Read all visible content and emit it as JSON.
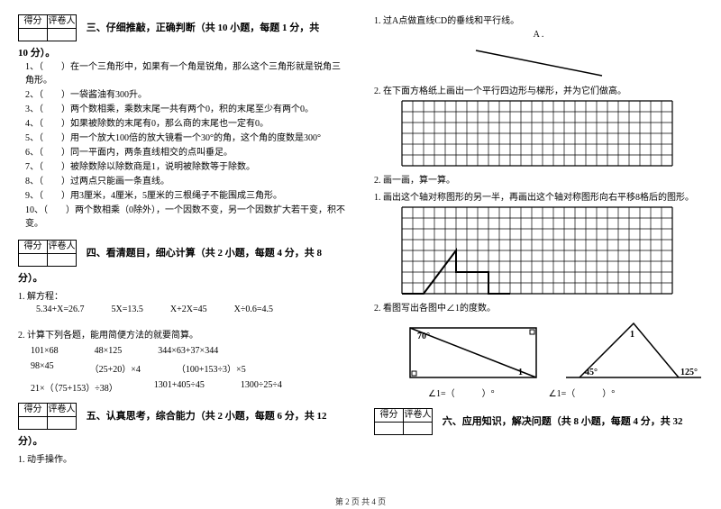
{
  "scorebox": {
    "c1": "得分",
    "c2": "评卷人"
  },
  "s3": {
    "title": "三、仔细推敲，正确判断（共 10 小题，每题 1 分，共",
    "title2": "10 分）。",
    "items": [
      "1、（　　）在一个三角形中，如果有一个角是锐角，那么这个三角形就是锐角三角形。",
      "2、（　　）一袋酱油有300升。",
      "3、（　　）两个数相乘，乘数末尾一共有两个0，积的末尾至少有两个0。",
      "4、（　　）如果被除数的末尾有0，那么商的末尾也一定有0。",
      "5、（　　）用一个放大100倍的放大镜看一个30°的角，这个角的度数是300°",
      "6、（　　）同一平面内，两条直线相交的点叫垂足。",
      "7、（　　）被除数除以除数商是1，说明被除数等于除数。",
      "8、（　　）过两点只能画一条直线。",
      "9、（　　）用3厘米，4厘米，5厘米的三根绳子不能围成三角形。",
      "10、（　　）两个数相乘（0除外），一个因数不变，另一个因数扩大若干变，积不变。"
    ]
  },
  "s4": {
    "title": "四、看清题目，细心计算（共 2 小题，每题 4 分，共 8",
    "title2": "分）。",
    "q1": "1. 解方程：",
    "eqs": [
      "5.34+X=26.7",
      "5X=13.5",
      "X+2X=45",
      "X÷0.6=4.5"
    ],
    "q2": "2. 计算下列各题，能用简便方法的就要简算。",
    "rows": [
      [
        "101×68",
        "48×125",
        "344×63+37×344"
      ],
      [
        "98×45",
        "（25+20）×4",
        "（100+153÷3）×5"
      ],
      [
        "21×（（75+153）÷38）",
        "1301+405÷45",
        "1300÷25÷4"
      ]
    ]
  },
  "s5": {
    "title": "五、认真思考，综合能力（共 2 小题，每题 6 分，共 12",
    "title2": "分）。",
    "q1": "1. 动手操作。"
  },
  "r1": {
    "q": "1. 过A点做直线CD的垂线和平行线。",
    "label": "A ."
  },
  "r2": {
    "q": "2. 在下面方格纸上画出一个平行四边形与梯形，并为它们做高。"
  },
  "r3": {
    "head": "2. 画一画，算一算。",
    "q1": "1. 画出这个轴对称图形的另一半，再画出这个轴对称图形向右平移8格后的图形。"
  },
  "r4": {
    "q": "2. 看图写出各图中∠1的度数。",
    "label70": "70°",
    "label45": "45°",
    "label125": "125°",
    "one": "1",
    "ans": "∠1=（　　　）°"
  },
  "s6": {
    "title": "六、应用知识，解决问题（共 8 小题，每题 4 分，共 32"
  },
  "footer": "第 2 页 共 4 页",
  "grid": {
    "cell": 12,
    "cols1": 25,
    "rows1": 6,
    "cols2": 25,
    "rows2": 8,
    "stroke": "#000000",
    "shape_stroke": "#000000"
  },
  "fig": {
    "rect_stroke": "#000000",
    "tri_stroke": "#000000"
  }
}
